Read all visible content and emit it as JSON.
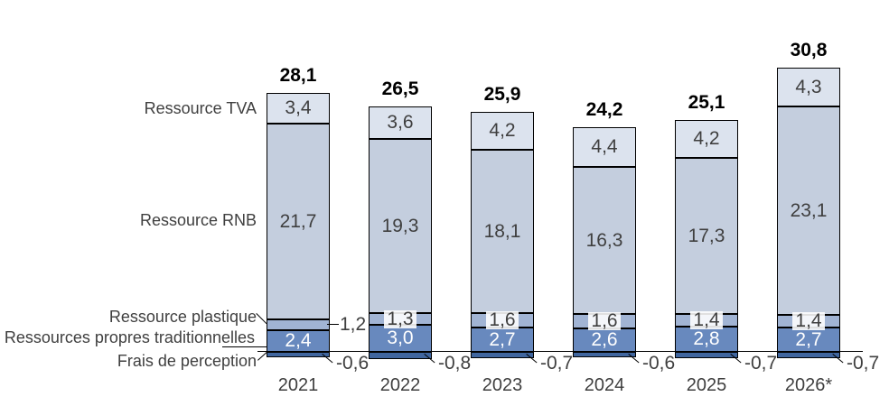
{
  "chart_data": {
    "type": "bar",
    "stacked": true,
    "title": "",
    "xlabel": "",
    "ylabel": "",
    "grid": false,
    "ylim": [
      -1,
      32
    ],
    "legend_position": "left-of-first-bar-category-labels",
    "categories": [
      "2021",
      "2022",
      "2023",
      "2024",
      "2025",
      "2026*"
    ],
    "series": [
      {
        "name": "Ressource TVA",
        "color": "#dce3ee",
        "values": [
          3.4,
          3.6,
          4.2,
          4.4,
          4.2,
          4.3
        ],
        "labels": [
          "3,4",
          "3,6",
          "4,2",
          "4,4",
          "4,2",
          "4,3"
        ],
        "label_style": "inside-dark"
      },
      {
        "name": "Ressource RNB",
        "color": "#c4cede",
        "values": [
          21.7,
          19.3,
          18.1,
          16.3,
          17.3,
          23.1
        ],
        "labels": [
          "21,7",
          "19,3",
          "18,1",
          "16,3",
          "17,3",
          "23,1"
        ],
        "label_style": "inside-dark"
      },
      {
        "name": "Ressource plastique",
        "color": "#a1b4d4",
        "values": [
          1.2,
          1.3,
          1.6,
          1.6,
          1.4,
          1.4
        ],
        "labels": [
          "1,2",
          "1,3",
          "1,6",
          "1,6",
          "1,4",
          "1,4"
        ],
        "label_style": "white-badge-inside-except-first-outside"
      },
      {
        "name": "Ressources propres traditionnelles",
        "color": "#6889be",
        "values": [
          2.4,
          3.0,
          2.7,
          2.6,
          2.8,
          2.7
        ],
        "labels": [
          "2,4",
          "3,0",
          "2,7",
          "2,6",
          "2,8",
          "2,7"
        ],
        "label_style": "inside-white"
      },
      {
        "name": "Frais de perception",
        "color": "#40669f",
        "values": [
          -0.6,
          -0.8,
          -0.7,
          -0.6,
          -0.7,
          -0.7
        ],
        "labels": [
          "-0,6",
          "-0,8",
          "-0,7",
          "-0,6",
          "-0,7",
          "-0,7"
        ],
        "label_style": "outside-below-axis-with-leader"
      }
    ],
    "totals": {
      "values": [
        28.1,
        26.5,
        25.9,
        24.2,
        25.1,
        30.8
      ],
      "labels": [
        "28,1",
        "26,5",
        "25,9",
        "24,2",
        "25,1",
        "30,8"
      ]
    },
    "colors": {
      "border": "#000000",
      "text_dark": "#3f3f3f",
      "text_white": "#ffffff",
      "background": "#ffffff"
    }
  }
}
